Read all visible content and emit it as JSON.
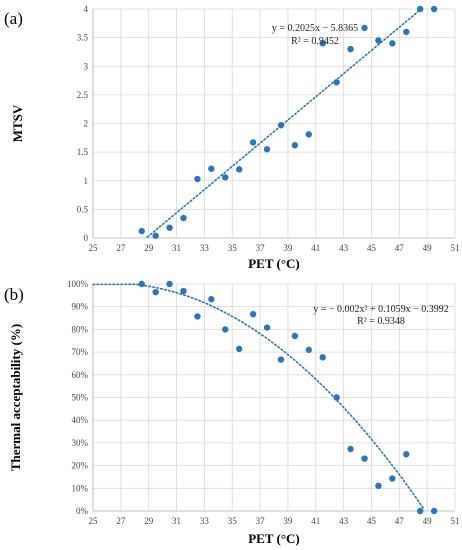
{
  "chart_data": [
    {
      "type": "scatter",
      "panel_label": "(a)",
      "xlabel": "PET (°C)",
      "ylabel": "MTSV",
      "xlim": [
        25,
        51
      ],
      "ylim": [
        0,
        4
      ],
      "x_ticks": [
        "25",
        "27",
        "29",
        "31",
        "33",
        "35",
        "37",
        "39",
        "41",
        "43",
        "45",
        "47",
        "49",
        "51"
      ],
      "y_ticks": [
        "0",
        "0.5",
        "1",
        "1.5",
        "2",
        "2.5",
        "3",
        "3.5",
        "4"
      ],
      "grid": true,
      "points": {
        "x": [
          28.5,
          29.5,
          30.5,
          31.5,
          32.5,
          33.5,
          34.5,
          35.5,
          36.5,
          37.5,
          38.5,
          39.5,
          40.5,
          41.5,
          42.5,
          43.5,
          44.5,
          45.5,
          46.5,
          47.5,
          48.5,
          49.5
        ],
        "y": [
          0.12,
          0.04,
          0.18,
          0.35,
          1.03,
          1.21,
          1.06,
          1.2,
          1.67,
          1.55,
          1.97,
          1.62,
          1.81,
          3.4,
          2.72,
          3.3,
          3.67,
          3.45,
          3.4,
          3.6,
          4.0,
          4.0
        ]
      },
      "trendline": {
        "kind": "linear",
        "coefficients": [
          0.2025,
          -5.8365
        ],
        "equation": "y = 0.2025x − 5.8365",
        "r2_label": "R² = 0.9452"
      },
      "marker_color": "#2e75b6"
    },
    {
      "type": "scatter",
      "panel_label": "(b)",
      "xlabel": "PET (°C)",
      "ylabel": "Thermal acceptability (%)",
      "xlim": [
        25,
        51
      ],
      "ylim": [
        0,
        100
      ],
      "x_ticks": [
        "25",
        "27",
        "29",
        "31",
        "33",
        "35",
        "37",
        "39",
        "41",
        "43",
        "45",
        "47",
        "49",
        "51"
      ],
      "y_ticks": [
        "0%",
        "10%",
        "20%",
        "30%",
        "40%",
        "50%",
        "60%",
        "70%",
        "80%",
        "90%",
        "100%"
      ],
      "grid": true,
      "points": {
        "x": [
          28.5,
          29.5,
          30.5,
          31.5,
          32.5,
          33.5,
          34.5,
          35.5,
          36.5,
          37.5,
          38.5,
          39.5,
          40.5,
          41.5,
          42.5,
          43.5,
          44.5,
          45.5,
          46.5,
          47.5,
          48.5,
          49.5
        ],
        "y": [
          100,
          96.4,
          100,
          96.9,
          85.7,
          93.3,
          80,
          71.4,
          86.7,
          80.8,
          66.7,
          77.1,
          71.0,
          67.7,
          50,
          27.3,
          23.1,
          11.1,
          14.3,
          25,
          0,
          0
        ]
      },
      "trendline": {
        "kind": "quadratic",
        "coefficients": [
          -0.002,
          0.1059,
          -0.3992
        ],
        "equation": "y = − 0.002x² + 0.1059x − 0.3992",
        "r2_label": "R² = 0.9348"
      },
      "marker_color": "#2e75b6"
    }
  ]
}
